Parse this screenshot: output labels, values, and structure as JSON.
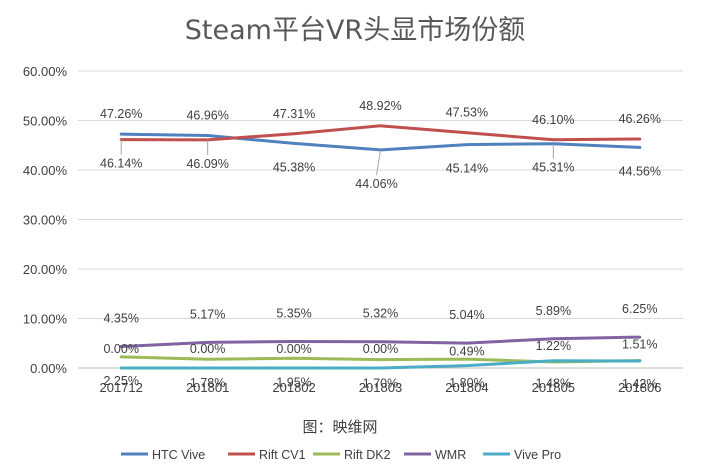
{
  "chart_data": {
    "type": "line",
    "title": "Steam平台VR头显市场份额",
    "categories": [
      "201712",
      "201801",
      "201802",
      "201803",
      "201804",
      "201805",
      "201806"
    ],
    "y_ticks": [
      "0.00%",
      "10.00%",
      "20.00%",
      "30.00%",
      "40.00%",
      "50.00%",
      "60.00%"
    ],
    "ylim": [
      0,
      60
    ],
    "grid": true,
    "legend_position": "bottom",
    "source_note": "图：映维网",
    "series": [
      {
        "name": "HTC Vive",
        "color": "#4F81BD",
        "values": [
          47.26,
          46.96,
          45.38,
          44.06,
          45.14,
          45.31,
          44.56
        ],
        "labels": [
          "47.26%",
          "46.96%",
          "45.38%",
          "44.06%",
          "45.14%",
          "45.31%",
          "44.56%"
        ]
      },
      {
        "name": "Rift CV1",
        "color": "#C0504D",
        "values": [
          46.14,
          46.09,
          47.31,
          48.92,
          47.53,
          46.1,
          46.26
        ],
        "labels": [
          "46.14%",
          "46.09%",
          "47.31%",
          "48.92%",
          "47.53%",
          "46.10%",
          "46.26%"
        ]
      },
      {
        "name": "Rift DK2",
        "color": "#9BBB59",
        "values": [
          2.25,
          1.78,
          1.95,
          1.7,
          1.8,
          1.22,
          1.51
        ],
        "labels": [
          "2.25%",
          "1.78%",
          "1.95%",
          "1.70%",
          "1.80%",
          "1.22%",
          "1.51%"
        ]
      },
      {
        "name": "WMR",
        "color": "#8064A2",
        "values": [
          4.35,
          5.17,
          5.35,
          5.32,
          5.04,
          5.89,
          6.25
        ],
        "labels": [
          "4.35%",
          "5.17%",
          "5.35%",
          "5.32%",
          "5.04%",
          "5.89%",
          "6.25%"
        ]
      },
      {
        "name": "Vive Pro",
        "color": "#4BACC6",
        "values": [
          0.0,
          0.0,
          0.0,
          0.0,
          0.49,
          1.48,
          1.42
        ],
        "labels": [
          "0.00%",
          "0.00%",
          "0.00%",
          "0.00%",
          "0.49%",
          "1.48%",
          "1.42%"
        ]
      }
    ]
  }
}
